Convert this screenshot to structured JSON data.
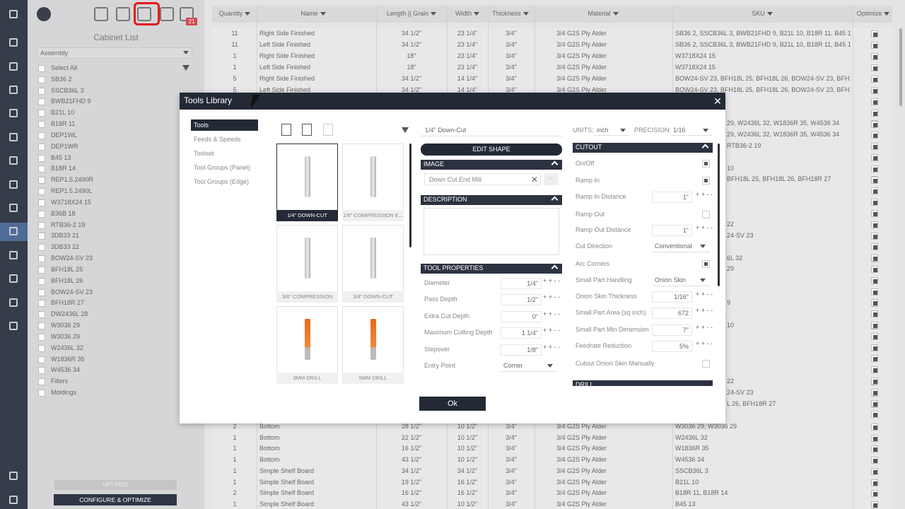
{
  "toolbar": {
    "badge": "21"
  },
  "cabinet_list": {
    "title": "Cabinet List",
    "filter": "Assembly",
    "items": [
      "Select All",
      "SB36 2",
      "SSCB36L 3",
      "BWB21FHD 9",
      "B21L 10",
      "B18R 11",
      "DEP1WL",
      "DEP1WR",
      "B45 13",
      "B18R 14",
      "REP1.5.2490R",
      "REP1.5.2490L",
      "W3718X24 15",
      "B36B 18",
      "RTB36-2 19",
      "3DB33 21",
      "3DB33 22",
      "BOW24-SV 23",
      "BFH18L 25",
      "BFH18L 26",
      "BOW24-SV 23",
      "BFH18R 27",
      "DW2436L 28",
      "W3036 29",
      "W3036 29",
      "W2436L 32",
      "W1836R 35",
      "W4536 34",
      "Fillers",
      "Moldings"
    ]
  },
  "buttons": {
    "optimize": "OPTIMIZE",
    "configure": "CONFIGURE & OPTIMIZE"
  },
  "table": {
    "columns": [
      "Quantity",
      "Name",
      "Length || Grain",
      "Width",
      "Thickness",
      "Material",
      "SKU",
      "Optimize"
    ],
    "rows_top": [
      [
        "11",
        "Right Side Finished",
        "34 1/2\"",
        "23 1/4\"",
        "3/4\"",
        "3/4 G2S Ply Alder",
        "SB36 2, SSCB36L 3, BWB21FHD 9, B21L 10, B18R 11, B45 13,..."
      ],
      [
        "11",
        "Left Side Finished",
        "34 1/2\"",
        "23 1/4\"",
        "3/4\"",
        "3/4 G2S Ply Alder",
        "SB36 2, SSCB36L 3, BWB21FHD 9, B21L 10, B18R 11, B45 13,..."
      ],
      [
        "1",
        "Right Side Finished",
        "18\"",
        "23 1/4\"",
        "3/4\"",
        "3/4 G2S Ply Alder",
        "W3718X24 15"
      ],
      [
        "1",
        "Left Side Finished",
        "18\"",
        "23 1/4\"",
        "3/4\"",
        "3/4 G2S Ply Alder",
        "W3718X24 15"
      ],
      [
        "5",
        "Right Side Finished",
        "34 1/2\"",
        "14 1/4\"",
        "3/4\"",
        "3/4 G2S Ply Alder",
        "BOW24-SV 23, BFH18L 25, BFH18L 26, BOW24-SV 23, BFH18..."
      ],
      [
        "5",
        "Left Side Finished",
        "34 1/2\"",
        "14 1/4\"",
        "3/4\"",
        "3/4 G2S Ply Alder",
        "BOW24-SV 23, BFH18L 25, BFH18L 26, BOW24-SV 23, BFH18..."
      ]
    ],
    "sku_fragments": [
      "29, W2436L 32, W1836R 35, W4536 34",
      "29, W2436L 32, W1836R 35, W4536 34",
      "RTB36-2 19",
      "10",
      "BFH18L 25, BFH18L 26, BFH18R 27",
      "22",
      "24-SV 23",
      "6L 32",
      "29",
      "9",
      "10",
      "22",
      "24-SV 23",
      "L 26, BFH18R 27"
    ],
    "rows_bottom": [
      [
        "2",
        "Bottom",
        "28 1/2\"",
        "10 1/2\"",
        "3/4\"",
        "3/4 G2S Ply Alder",
        "W3036 29, W3036 29"
      ],
      [
        "1",
        "Bottom",
        "22 1/2\"",
        "10 1/2\"",
        "3/4\"",
        "3/4 G2S Ply Alder",
        "W2436L 32"
      ],
      [
        "1",
        "Bottom",
        "16 1/2\"",
        "10 1/2\"",
        "3/4\"",
        "3/4 G2S Ply Alder",
        "W1836R 35"
      ],
      [
        "1",
        "Bottom",
        "43 1/2\"",
        "10 1/2\"",
        "3/4\"",
        "3/4 G2S Ply Alder",
        "W4536 34"
      ],
      [
        "1",
        "Simple Shelf Board",
        "34 1/2\"",
        "34 1/2\"",
        "3/4\"",
        "3/4 G2S Ply Alder",
        "SSCB36L 3"
      ],
      [
        "1",
        "Simple Shelf Board",
        "19 1/2\"",
        "16 1/2\"",
        "3/4\"",
        "3/4 G2S Ply Alder",
        "B21L 10"
      ],
      [
        "2",
        "Simple Shelf Board",
        "16 1/2\"",
        "16 1/2\"",
        "3/4\"",
        "3/4 G2S Ply Alder",
        "B18R 11, B18R 14"
      ],
      [
        "1",
        "Simple Shelf Board",
        "43 1/2\"",
        "10 1/2\"",
        "3/4\"",
        "3/4 G2S Ply Alder",
        "B45 13"
      ]
    ]
  },
  "modal": {
    "title": "Tools Library",
    "nav": [
      "Tools",
      "Feeds & Speeds",
      "Toolset",
      "Tool Groups (Panel)",
      "Tool Groups (Edge)"
    ],
    "tools": [
      "1/4\" DOWN-CUT",
      "1/8\" COMPRESSION E...",
      "3/8\" COMPRESSION",
      "3/8\" DOWN-CUT",
      "3MM DRILL",
      "5MM DRILL"
    ],
    "tool_name": "1/4\" Down-Cut",
    "edit_shape": "EDIT SHAPE",
    "image_header": "IMAGE",
    "image_name": "Down Cut End Mill",
    "browse": "...",
    "description_header": "DESCRIPTION",
    "properties_header": "TOOL PROPERTIES",
    "properties": [
      {
        "label": "Diameter",
        "type": "number",
        "value": "1/4\""
      },
      {
        "label": "Pass Depth",
        "type": "number",
        "value": "1/2\""
      },
      {
        "label": "Extra Cut Depth",
        "type": "number",
        "value": "0\""
      },
      {
        "label": "Maximum Cutting Depth",
        "type": "number",
        "value": "1 1/4\""
      },
      {
        "label": "Stepover",
        "type": "number",
        "value": "1/8\""
      },
      {
        "label": "Entry Point",
        "type": "select",
        "value": "Corner"
      }
    ],
    "units_label": "UNITS:",
    "units": "inch",
    "precision_label": "PRECISION:",
    "precision": "1/16",
    "cutout_header": "CUTOUT",
    "cutout": [
      {
        "label": "On/Off",
        "type": "check",
        "checked": true
      },
      {
        "label": "Ramp In",
        "type": "check",
        "checked": true
      },
      {
        "label": "Ramp In Distance",
        "type": "number",
        "value": "1\""
      },
      {
        "label": "Ramp Out",
        "type": "check",
        "checked": false
      },
      {
        "label": "Ramp Out Distance",
        "type": "number",
        "value": "1\""
      },
      {
        "label": "Cut Direction",
        "type": "select",
        "value": "Conventional"
      },
      {
        "label": "Arc Corners",
        "type": "check",
        "checked": true
      },
      {
        "label": "Small Part Handling",
        "type": "select",
        "value": "Onion Skin"
      },
      {
        "label": "Onion Skin Thickness",
        "type": "number",
        "value": "1/16\""
      },
      {
        "label": "Small Part Area (sq inch)",
        "type": "number",
        "value": "672"
      },
      {
        "label": "Small Part Min Dimension",
        "type": "number",
        "value": "7\""
      },
      {
        "label": "Feedrate Reduction",
        "type": "number",
        "value": "5%"
      },
      {
        "label": "Cutout Onion Skin Manually",
        "type": "check",
        "checked": false
      }
    ],
    "drill_header": "DRILL",
    "ok": "Ok"
  }
}
